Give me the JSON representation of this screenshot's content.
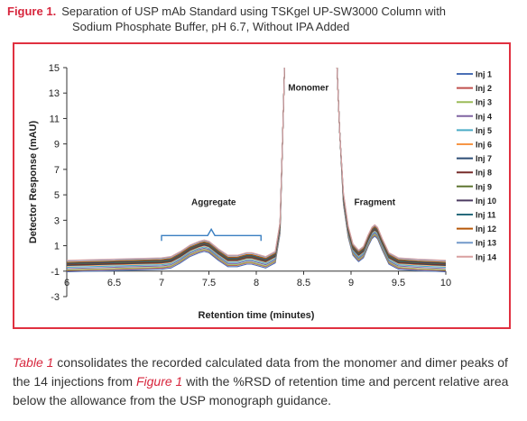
{
  "figure": {
    "label": "Figure 1.",
    "title_line1": "Separation of USP mAb Standard using TSKgel UP-SW3000 Column with",
    "title_line2": "Sodium Phosphate Buffer, pH 6.7, Without IPA Added"
  },
  "body_text": {
    "ref1": "Table 1",
    "part1": " consolidates the recorded calculated data from the monomer and dimer peaks of the 14 injections from ",
    "ref2": "Figure 1",
    "part2": " with the %RSD of retention time and percent relative area below the allowance from the USP monograph guidance."
  },
  "colors": {
    "frame_border": "#e03040",
    "accent_red": "#d7263d",
    "bracket": "#3a7fc1"
  },
  "chart_data": {
    "type": "line",
    "xlabel": "Retention time (minutes)",
    "ylabel": "Detector Response (mAU)",
    "xlim": [
      6,
      10
    ],
    "ylim": [
      -3,
      15
    ],
    "x_ticks": [
      "6",
      "6.5",
      "7",
      "7.5",
      "8",
      "8.5",
      "9",
      "9.5",
      "10"
    ],
    "y_ticks": [
      "-3",
      "-1",
      "1",
      "3",
      "5",
      "7",
      "9",
      "11",
      "13",
      "15"
    ],
    "grid": false,
    "legend_position": "right",
    "annotations": [
      {
        "text": "Aggregate",
        "x": 7.55,
        "y": 4.2
      },
      {
        "text": "Monomer",
        "x": 8.55,
        "y": 13.2
      },
      {
        "text": "Fragment",
        "x": 9.25,
        "y": 4.2
      }
    ],
    "aggregate_bracket": {
      "x_start": 7.0,
      "x_end": 8.05,
      "y": 1.8
    },
    "series": [
      {
        "name": "Inj 1",
        "color": "#4a6fb5"
      },
      {
        "name": "Inj 2",
        "color": "#c0504d"
      },
      {
        "name": "Inj 3",
        "color": "#9bbb59"
      },
      {
        "name": "Inj 4",
        "color": "#8064a2"
      },
      {
        "name": "Inj 5",
        "color": "#4bacc6"
      },
      {
        "name": "Inj 6",
        "color": "#f79646"
      },
      {
        "name": "Inj 7",
        "color": "#2c4d75"
      },
      {
        "name": "Inj 8",
        "color": "#772c2a"
      },
      {
        "name": "Inj 9",
        "color": "#5f7530"
      },
      {
        "name": "Inj 10",
        "color": "#4d3b62"
      },
      {
        "name": "Inj 11",
        "color": "#276a7c"
      },
      {
        "name": "Inj 12",
        "color": "#b65708"
      },
      {
        "name": "Inj 13",
        "color": "#729aca"
      },
      {
        "name": "Inj 14",
        "color": "#d9a0a0"
      }
    ],
    "trace_profile": {
      "x": [
        6.0,
        6.5,
        7.0,
        7.1,
        7.2,
        7.3,
        7.4,
        7.45,
        7.5,
        7.6,
        7.7,
        7.8,
        7.9,
        7.95,
        8.0,
        8.1,
        8.2,
        8.25,
        8.28,
        8.3,
        8.85,
        8.88,
        8.92,
        8.97,
        9.02,
        9.08,
        9.13,
        9.18,
        9.22,
        9.25,
        9.28,
        9.33,
        9.4,
        9.5,
        9.7,
        10.0
      ],
      "y": [
        -0.5,
        -0.4,
        -0.3,
        -0.2,
        0.2,
        0.7,
        1.0,
        1.1,
        1.0,
        0.4,
        -0.1,
        -0.1,
        0.1,
        0.1,
        0.0,
        -0.2,
        0.2,
        2.5,
        10.0,
        15.5,
        15.5,
        10.0,
        4.8,
        2.2,
        0.8,
        0.3,
        0.6,
        1.5,
        2.1,
        2.3,
        2.1,
        1.2,
        0.1,
        -0.3,
        -0.4,
        -0.5
      ]
    },
    "trace_offsets": [
      -0.55,
      -0.45,
      -0.4,
      -0.3,
      -0.2,
      -0.1,
      -0.05,
      0.0,
      0.05,
      0.1,
      0.15,
      0.2,
      0.3,
      0.35
    ]
  }
}
